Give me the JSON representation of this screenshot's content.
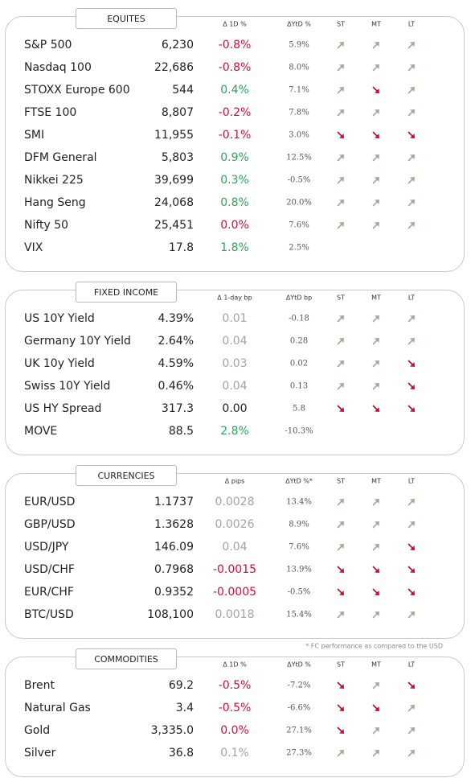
{
  "sections": [
    {
      "title": "EQUITES",
      "headers": [
        "Δ 1D %",
        "ΔYtD %",
        "ST",
        "MT",
        "LT"
      ],
      "rows": [
        {
          "name": "S&P 500",
          "value": "6,230",
          "change": "-0.8%",
          "ytd": "5.9%",
          "tone": "negative",
          "trends": [
            "up",
            "up",
            "up"
          ]
        },
        {
          "name": "Nasdaq 100",
          "value": "22,686",
          "change": "-0.8%",
          "ytd": "8.0%",
          "tone": "negative",
          "trends": [
            "up",
            "up",
            "up"
          ]
        },
        {
          "name": "STOXX Europe 600",
          "value": "544",
          "change": "0.4%",
          "ytd": "7.1%",
          "tone": "positive",
          "trends": [
            "up",
            "down",
            "up"
          ]
        },
        {
          "name": "FTSE 100",
          "value": "8,807",
          "change": "-0.2%",
          "ytd": "7.8%",
          "tone": "negative",
          "trends": [
            "up",
            "up",
            "up"
          ]
        },
        {
          "name": "SMI",
          "value": "11,955",
          "change": "-0.1%",
          "ytd": "3.0%",
          "tone": "negative",
          "trends": [
            "down",
            "down",
            "down"
          ]
        },
        {
          "name": "DFM General",
          "value": "5,803",
          "change": "0.9%",
          "ytd": "12.5%",
          "tone": "positive",
          "trends": [
            "up",
            "up",
            "up"
          ]
        },
        {
          "name": "Nikkei 225",
          "value": "39,699",
          "change": "0.3%",
          "ytd": "-0.5%",
          "tone": "positive",
          "trends": [
            "up",
            "up",
            "up"
          ]
        },
        {
          "name": "Hang Seng",
          "value": "24,068",
          "change": "0.8%",
          "ytd": "20.0%",
          "tone": "positive",
          "trends": [
            "up",
            "up",
            "up"
          ]
        },
        {
          "name": "Nifty  50",
          "value": "25,451",
          "change": "0.0%",
          "ytd": "7.6%",
          "tone": "negative",
          "trends": [
            "up",
            "up",
            "up"
          ]
        },
        {
          "name": "VIX",
          "value": "17.8",
          "change": "1.8%",
          "ytd": "2.5%",
          "tone": "positive"
        }
      ]
    },
    {
      "title": "FIXED INCOME",
      "headers": [
        "Δ 1-day bp",
        "ΔYtD bp",
        "ST",
        "MT",
        "LT"
      ],
      "rows": [
        {
          "name": "US 10Y Yield",
          "value": "4.39%",
          "change": "0.01",
          "ytd": "-0.18",
          "tone": "muted",
          "trends": [
            "up",
            "up",
            "up"
          ]
        },
        {
          "name": "Germany 10Y Yield",
          "value": "2.64%",
          "change": "0.04",
          "ytd": "0.28",
          "tone": "muted",
          "trends": [
            "up",
            "up",
            "up"
          ]
        },
        {
          "name": "UK 10y Yield",
          "value": "4.59%",
          "change": "0.03",
          "ytd": "0.02",
          "tone": "muted",
          "trends": [
            "up",
            "up",
            "down"
          ]
        },
        {
          "name": "Swiss 10Y Yield",
          "value": "0.46%",
          "change": "0.04",
          "ytd": "0.13",
          "tone": "muted",
          "trends": [
            "up",
            "up",
            "down"
          ]
        },
        {
          "name": "US HY Spread",
          "value": "317.3",
          "change": "0.00",
          "ytd": "5.8",
          "tone": "plain",
          "trends": [
            "down",
            "down",
            "down"
          ]
        },
        {
          "name": "MOVE",
          "value": "88.5",
          "change": "2.8%",
          "ytd": "-10.3%",
          "tone": "positive"
        }
      ]
    },
    {
      "title": "CURRENCIES",
      "headers": [
        "Δ pips",
        "ΔYtD %*",
        "ST",
        "MT",
        "LT"
      ],
      "footnote": "* FC performance as compared to the USD",
      "rows": [
        {
          "name": "EUR/USD",
          "value": "1.1737",
          "change": "0.0028",
          "ytd": "13.4%",
          "tone": "muted",
          "trends": [
            "up",
            "up",
            "up"
          ]
        },
        {
          "name": "GBP/USD",
          "value": "1.3628",
          "change": "0.0026",
          "ytd": "8.9%",
          "tone": "muted",
          "trends": [
            "up",
            "up",
            "up"
          ]
        },
        {
          "name": "USD/JPY",
          "value": "146.09",
          "change": "0.04",
          "ytd": "7.6%",
          "tone": "muted",
          "trends": [
            "up",
            "up",
            "down"
          ]
        },
        {
          "name": "USD/CHF",
          "value": "0.7968",
          "change": "-0.0015",
          "ytd": "13.9%",
          "tone": "negative",
          "trends": [
            "down",
            "down",
            "down"
          ]
        },
        {
          "name": "EUR/CHF",
          "value": "0.9352",
          "change": "-0.0005",
          "ytd": "-0.5%",
          "tone": "negative",
          "trends": [
            "down",
            "down",
            "down"
          ]
        },
        {
          "name": "BTC/USD",
          "value": "108,100",
          "change": "0.0018",
          "ytd": "15.4%",
          "tone": "muted",
          "trends": [
            "up",
            "up",
            "up"
          ]
        }
      ]
    },
    {
      "title": "COMMODITIES",
      "headers": [
        "Δ 1D %",
        "ΔYtD %",
        "ST",
        "MT",
        "LT"
      ],
      "rows": [
        {
          "name": "Brent",
          "value": "69.2",
          "change": "-0.5%",
          "ytd": "-7.2%",
          "tone": "negative",
          "trends": [
            "down",
            "up",
            "down"
          ]
        },
        {
          "name": "Natural Gas",
          "value": "3.4",
          "change": "-0.5%",
          "ytd": "-6.6%",
          "tone": "negative",
          "trends": [
            "down",
            "down",
            "up"
          ]
        },
        {
          "name": "Gold",
          "value": "3,335.0",
          "change": "0.0%",
          "ytd": "27.1%",
          "tone": "negative",
          "trends": [
            "down",
            "up",
            "up"
          ]
        },
        {
          "name": "Silver",
          "value": "36.8",
          "change": "0.1%",
          "ytd": "27.3%",
          "tone": "muted",
          "trends": [
            "up",
            "up",
            "up"
          ]
        }
      ]
    }
  ]
}
